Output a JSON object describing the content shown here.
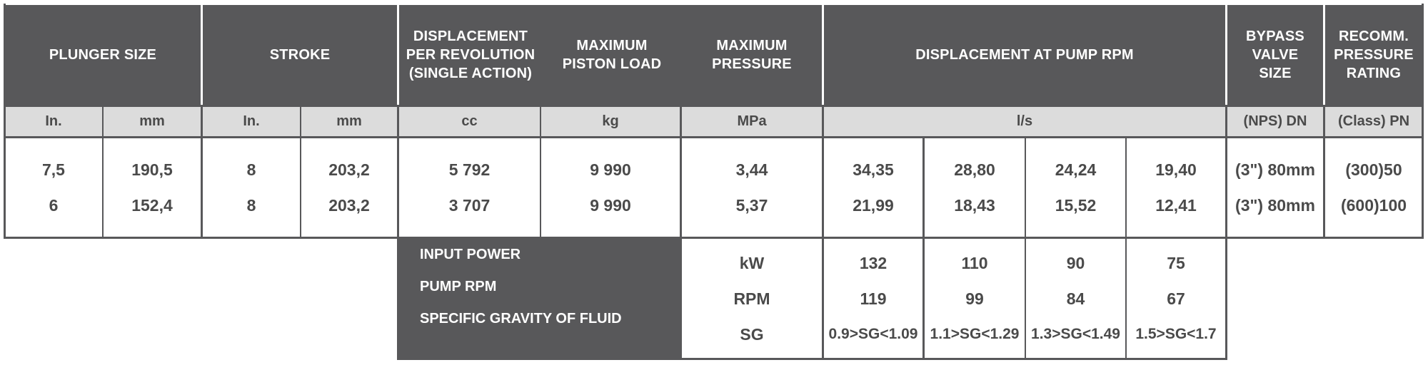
{
  "headers": {
    "plunger_size": "PLUNGER SIZE",
    "stroke": "STROKE",
    "displacement_per_rev": "DISPLACEMENT\nPER REVOLUTION\n(SINGLE ACTION)",
    "max_piston_load": "MAXIMUM\nPISTON LOAD",
    "max_pressure": "MAXIMUM\nPRESSURE",
    "displacement_at_rpm": "DISPLACEMENT AT PUMP RPM",
    "bypass_valve_size": "BYPASS\nVALVE\nSIZE",
    "recomm_pressure_rating": "RECOMM.\nPRESSURE\nRATING"
  },
  "units": {
    "plunger_in": "In.",
    "plunger_mm": "mm",
    "stroke_in": "In.",
    "stroke_mm": "mm",
    "displacement": "cc",
    "piston_load": "kg",
    "pressure": "MPa",
    "flow": "l/s",
    "bypass": "(NPS) DN",
    "rating": "(Class) PN"
  },
  "rows": [
    {
      "plunger_in": "7,5",
      "plunger_mm": "190,5",
      "stroke_in": "8",
      "stroke_mm": "203,2",
      "displacement": "5 792",
      "piston_load": "9 990",
      "pressure": "3,44",
      "flow": [
        "34,35",
        "28,80",
        "24,24",
        "19,40"
      ],
      "bypass": "(3\") 80mm",
      "rating": "(300)50"
    },
    {
      "plunger_in": "6",
      "plunger_mm": "152,4",
      "stroke_in": "8",
      "stroke_mm": "203,2",
      "displacement": "3 707",
      "piston_load": "9 990",
      "pressure": "5,37",
      "flow": [
        "21,99",
        "18,43",
        "15,52",
        "12,41"
      ],
      "bypass": "(3\") 80mm",
      "rating": "(600)100"
    }
  ],
  "bottom": {
    "labels": [
      "INPUT POWER",
      "PUMP RPM",
      "SPECIFIC GRAVITY OF FLUID"
    ],
    "units": [
      "kW",
      "RPM",
      "SG"
    ],
    "columns": [
      [
        "132",
        "119",
        "0.9>SG<1.09"
      ],
      [
        "110",
        "99",
        "1.1>SG<1.29"
      ],
      [
        "90",
        "84",
        "1.3>SG<1.49"
      ],
      [
        "75",
        "67",
        "1.5>SG<1.7"
      ]
    ]
  }
}
